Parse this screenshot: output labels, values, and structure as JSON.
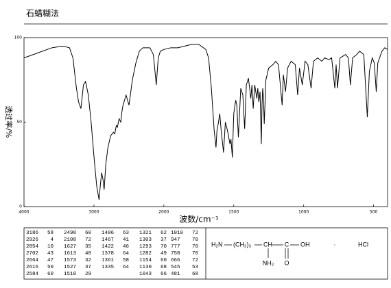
{
  "chart_data": {
    "type": "line",
    "title": "石蜡糊法",
    "x_label": "波数/cm⁻¹",
    "y_label": "透过率/%",
    "x": [
      4000,
      3800,
      3600,
      3450,
      3350,
      3300,
      3250,
      3220,
      3186,
      3150,
      3120,
      3080,
      3040,
      3000,
      2960,
      2926,
      2910,
      2890,
      2870,
      2854,
      2830,
      2800,
      2760,
      2720,
      2702,
      2680,
      2664,
      2640,
      2616,
      2600,
      2584,
      2540,
      2498,
      2450,
      2400,
      2350,
      2300,
      2200,
      2150,
      2108,
      2080,
      2050,
      2000,
      1950,
      1900,
      1850,
      1800,
      1750,
      1700,
      1680,
      1660,
      1640,
      1627,
      1620,
      1613,
      1600,
      1590,
      1573,
      1560,
      1545,
      1527,
      1520,
      1510,
      1500,
      1486,
      1478,
      1467,
      1450,
      1435,
      1422,
      1410,
      1395,
      1378,
      1370,
      1361,
      1350,
      1335,
      1328,
      1321,
      1312,
      1303,
      1298,
      1293,
      1288,
      1282,
      1270,
      1250,
      1220,
      1200,
      1180,
      1154,
      1145,
      1130,
      1115,
      1090,
      1060,
      1043,
      1030,
      1010,
      990,
      970,
      947,
      930,
      900,
      870,
      850,
      820,
      800,
      777,
      768,
      758,
      740,
      700,
      680,
      666,
      650,
      620,
      600,
      570,
      545,
      530,
      510,
      495,
      481,
      470,
      440,
      420,
      400
    ],
    "series": [
      {
        "color": "#000000",
        "values": [
          88,
          91,
          94,
          95,
          94,
          88,
          70,
          62,
          58,
          72,
          74,
          66,
          50,
          30,
          12,
          4,
          12,
          20,
          16,
          10,
          25,
          35,
          42,
          44,
          43,
          48,
          47,
          52,
          50,
          56,
          60,
          66,
          60,
          75,
          85,
          92,
          94,
          94,
          90,
          72,
          88,
          92,
          93,
          94,
          94,
          95,
          96,
          96,
          93,
          88,
          70,
          45,
          35,
          45,
          48,
          55,
          45,
          32,
          50,
          45,
          37,
          40,
          29,
          55,
          63,
          60,
          41,
          70,
          66,
          46,
          72,
          76,
          64,
          72,
          58,
          72,
          64,
          70,
          62,
          68,
          37,
          60,
          70,
          65,
          49,
          75,
          82,
          84,
          86,
          84,
          60,
          78,
          68,
          82,
          86,
          84,
          66,
          82,
          72,
          86,
          84,
          70,
          86,
          88,
          86,
          88,
          87,
          88,
          70,
          84,
          70,
          88,
          90,
          88,
          72,
          88,
          90,
          92,
          90,
          53,
          80,
          88,
          85,
          68,
          85,
          92,
          94,
          93
        ]
      }
    ],
    "xlim": [
      4000,
      400
    ],
    "ylim": [
      0,
      100
    ],
    "xticks": [
      4000,
      3000,
      2000,
      1500,
      1000,
      500
    ],
    "yticks": [
      0,
      50,
      100
    ]
  },
  "peak_table": [
    [
      [
        3186,
        58
      ],
      [
        2926,
        4
      ],
      [
        2854,
        10
      ],
      [
        2702,
        43
      ],
      [
        2664,
        47
      ],
      [
        2616,
        50
      ],
      [
        2584,
        60
      ]
    ],
    [
      [
        2498,
        60
      ],
      [
        2108,
        72
      ],
      [
        1627,
        35
      ],
      [
        1613,
        48
      ],
      [
        1573,
        32
      ],
      [
        1527,
        37
      ],
      [
        1510,
        29
      ]
    ],
    [
      [
        1486,
        63
      ],
      [
        1467,
        41
      ],
      [
        1422,
        46
      ],
      [
        1378,
        64
      ],
      [
        1361,
        58
      ],
      [
        1335,
        64
      ]
    ],
    [
      [
        1321,
        62
      ],
      [
        1303,
        37
      ],
      [
        1293,
        70
      ],
      [
        1282,
        49
      ],
      [
        1154,
        60
      ],
      [
        1130,
        68
      ],
      [
        1043,
        66
      ]
    ],
    [
      [
        1010,
        72
      ],
      [
        947,
        70
      ],
      [
        777,
        70
      ],
      [
        758,
        70
      ],
      [
        666,
        72
      ],
      [
        545,
        53
      ],
      [
        481,
        68
      ]
    ]
  ],
  "structure": [
    "H₂N",
    "(CH₂)₃",
    "CH",
    "C",
    "OH",
    "NH₂",
    "O",
    "·",
    "HCl"
  ]
}
